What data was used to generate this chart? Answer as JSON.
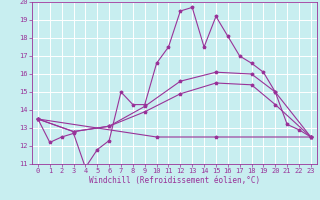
{
  "xlabel": "Windchill (Refroidissement éolien,°C)",
  "bg_color": "#c8eef0",
  "line_color": "#993399",
  "grid_color": "#ffffff",
  "xlim": [
    -0.5,
    23.5
  ],
  "ylim": [
    11,
    20
  ],
  "yticks": [
    11,
    12,
    13,
    14,
    15,
    16,
    17,
    18,
    19,
    20
  ],
  "xticks": [
    0,
    1,
    2,
    3,
    4,
    5,
    6,
    7,
    8,
    9,
    10,
    11,
    12,
    13,
    14,
    15,
    16,
    17,
    18,
    19,
    20,
    21,
    22,
    23
  ],
  "lines": [
    {
      "x": [
        0,
        1,
        2,
        3,
        4,
        5,
        6,
        7,
        8,
        9,
        10,
        11,
        12,
        13,
        14,
        15,
        16,
        17,
        18,
        19,
        20,
        21,
        22,
        23
      ],
      "y": [
        13.5,
        12.2,
        12.5,
        12.7,
        10.8,
        11.8,
        12.3,
        15.0,
        14.3,
        14.3,
        16.6,
        17.5,
        19.5,
        19.7,
        17.5,
        19.2,
        18.1,
        17.0,
        16.6,
        16.1,
        15.0,
        13.2,
        12.9,
        12.5
      ]
    },
    {
      "x": [
        0,
        3,
        6,
        9,
        12,
        15,
        18,
        20,
        23
      ],
      "y": [
        13.5,
        12.8,
        13.1,
        14.2,
        15.6,
        16.1,
        16.0,
        15.0,
        12.5
      ]
    },
    {
      "x": [
        0,
        3,
        6,
        9,
        12,
        15,
        18,
        20,
        23
      ],
      "y": [
        13.5,
        12.8,
        13.1,
        13.9,
        14.9,
        15.5,
        15.4,
        14.3,
        12.5
      ]
    },
    {
      "x": [
        0,
        10,
        15,
        23
      ],
      "y": [
        13.5,
        12.5,
        12.5,
        12.5
      ]
    }
  ]
}
